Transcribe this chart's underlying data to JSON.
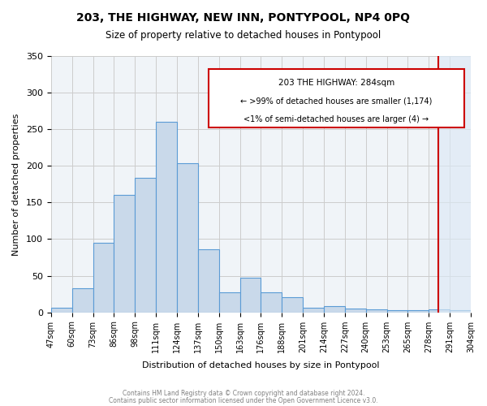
{
  "title": "203, THE HIGHWAY, NEW INN, PONTYPOOL, NP4 0PQ",
  "subtitle": "Size of property relative to detached houses in Pontypool",
  "xlabel": "Distribution of detached houses by size in Pontypool",
  "ylabel": "Number of detached properties",
  "bar_labels": [
    "47sqm",
    "60sqm",
    "73sqm",
    "86sqm",
    "98sqm",
    "111sqm",
    "124sqm",
    "137sqm",
    "150sqm",
    "163sqm",
    "176sqm",
    "188sqm",
    "201sqm",
    "214sqm",
    "227sqm",
    "240sqm",
    "253sqm",
    "265sqm",
    "278sqm",
    "291sqm",
    "304sqm"
  ],
  "bar_values": [
    6,
    33,
    95,
    160,
    184,
    260,
    204,
    86,
    27,
    47,
    27,
    21,
    6,
    9,
    5,
    4,
    3,
    3,
    4,
    3
  ],
  "bar_color": "#c9d9ea",
  "bar_edge_color": "#5b9bd5",
  "ylim": [
    0,
    350
  ],
  "yticks": [
    0,
    50,
    100,
    150,
    200,
    250,
    300,
    350
  ],
  "subject_value": 284,
  "subject_label": "203 THE HIGHWAY: 284sqm",
  "annotation_line1": "← >99% of detached houses are smaller (1,174)",
  "annotation_line2": "<1% of semi-detached houses are larger (4) →",
  "vline_color": "#cc0000",
  "annotation_box_color": "#cc0000",
  "grid_color": "#cccccc",
  "background_color": "#f0f4f8",
  "footer1": "Contains HM Land Registry data © Crown copyright and database right 2024.",
  "footer2": "Contains public sector information licensed under the Open Government Licence v3.0."
}
